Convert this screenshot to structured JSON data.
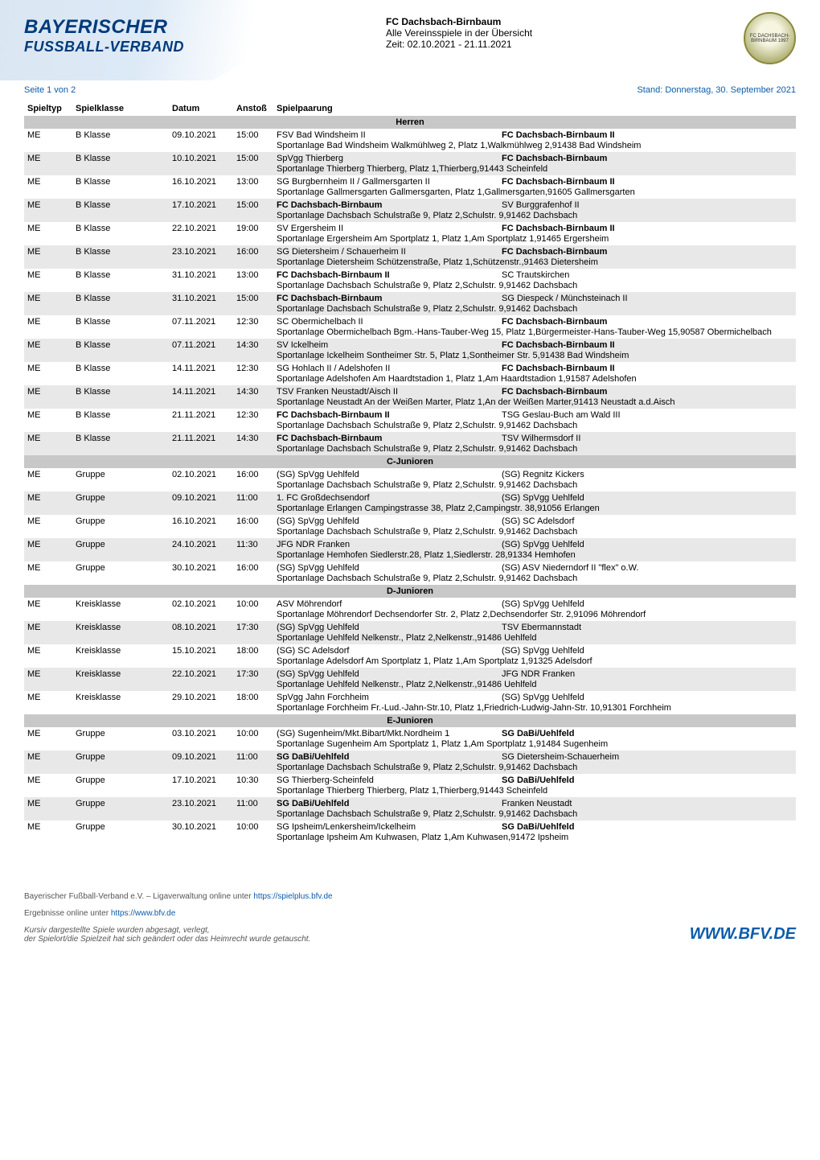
{
  "header": {
    "logo_line1": "BAYERISCHER",
    "logo_line2": "FUSSBALL-VERBAND",
    "club_name": "FC Dachsbach-Birnbaum",
    "subtitle": "Alle Vereinsspiele in der Übersicht",
    "period": "Zeit: 02.10.2021 - 21.11.2021",
    "club_badge": "FC DACHSBACH-BIRNBAUM 1997"
  },
  "meta": {
    "page": "Seite 1 von 2",
    "stand": "Stand: Donnerstag, 30. September 2021"
  },
  "columns": {
    "spieltyp": "Spieltyp",
    "spielklasse": "Spielklasse",
    "datum": "Datum",
    "anstoss": "Anstoß",
    "spielpaarung": "Spielpaarung"
  },
  "sections": [
    {
      "title": "Herren",
      "rows": [
        {
          "spieltyp": "ME",
          "spielklasse": "B Klasse",
          "datum": "09.10.2021",
          "anstoss": "15:00",
          "home": "FSV Bad Windsheim II",
          "away": "FC Dachsbach-Birnbaum II",
          "away_bold": true,
          "venue": "Sportanlage Bad Windsheim Walkmühlweg 2, Platz 1,Walkmühlweg 2,91438 Bad Windsheim"
        },
        {
          "spieltyp": "ME",
          "spielklasse": "B Klasse",
          "datum": "10.10.2021",
          "anstoss": "15:00",
          "home": "SpVgg Thierberg",
          "away": "FC Dachsbach-Birnbaum",
          "away_bold": true,
          "venue": "Sportanlage Thierberg Thierberg, Platz 1,Thierberg,91443 Scheinfeld"
        },
        {
          "spieltyp": "ME",
          "spielklasse": "B Klasse",
          "datum": "16.10.2021",
          "anstoss": "13:00",
          "home": "SG Burgbernheim II / Gallmersgarten II",
          "away": "FC Dachsbach-Birnbaum II",
          "away_bold": true,
          "venue": "Sportanlage Gallmersgarten Gallmersgarten, Platz 1,Gallmersgarten,91605 Gallmersgarten"
        },
        {
          "spieltyp": "ME",
          "spielklasse": "B Klasse",
          "datum": "17.10.2021",
          "anstoss": "15:00",
          "home": "FC Dachsbach-Birnbaum",
          "home_bold": true,
          "away": "SV Burggrafenhof II",
          "away_bold": false,
          "venue": "Sportanlage Dachsbach Schulstraße 9, Platz 2,Schulstr. 9,91462 Dachsbach"
        },
        {
          "spieltyp": "ME",
          "spielklasse": "B Klasse",
          "datum": "22.10.2021",
          "anstoss": "19:00",
          "home": "SV Ergersheim II",
          "away": "FC Dachsbach-Birnbaum II",
          "away_bold": true,
          "venue": "Sportanlage Ergersheim Am Sportplatz 1, Platz 1,Am Sportplatz 1,91465 Ergersheim"
        },
        {
          "spieltyp": "ME",
          "spielklasse": "B Klasse",
          "datum": "23.10.2021",
          "anstoss": "16:00",
          "home": "SG Dietersheim / Schauerheim II",
          "away": "FC Dachsbach-Birnbaum",
          "away_bold": true,
          "venue": "Sportanlage Dietersheim Schützenstraße, Platz 1,Schützenstr.,91463 Dietersheim"
        },
        {
          "spieltyp": "ME",
          "spielklasse": "B Klasse",
          "datum": "31.10.2021",
          "anstoss": "13:00",
          "home": "FC Dachsbach-Birnbaum II",
          "home_bold": true,
          "away": "SC Trautskirchen",
          "away_bold": false,
          "venue": "Sportanlage Dachsbach Schulstraße 9, Platz 2,Schulstr. 9,91462 Dachsbach"
        },
        {
          "spieltyp": "ME",
          "spielklasse": "B Klasse",
          "datum": "31.10.2021",
          "anstoss": "15:00",
          "home": "FC Dachsbach-Birnbaum",
          "home_bold": true,
          "away": "SG Diespeck / Münchsteinach II",
          "away_bold": false,
          "venue": "Sportanlage Dachsbach Schulstraße 9, Platz 2,Schulstr. 9,91462 Dachsbach"
        },
        {
          "spieltyp": "ME",
          "spielklasse": "B Klasse",
          "datum": "07.11.2021",
          "anstoss": "12:30",
          "home": "SC Obermichelbach II",
          "away": "FC Dachsbach-Birnbaum",
          "away_bold": true,
          "venue": "Sportanlage Obermichelbach Bgm.-Hans-Tauber-Weg 15, Platz 1,Bürgermeister-Hans-Tauber-Weg 15,90587 Obermichelbach"
        },
        {
          "spieltyp": "ME",
          "spielklasse": "B Klasse",
          "datum": "07.11.2021",
          "anstoss": "14:30",
          "home": "SV Ickelheim",
          "away": "FC Dachsbach-Birnbaum II",
          "away_bold": true,
          "venue": "Sportanlage Ickelheim Sontheimer Str. 5, Platz 1,Sontheimer Str. 5,91438 Bad Windsheim"
        },
        {
          "spieltyp": "ME",
          "spielklasse": "B Klasse",
          "datum": "14.11.2021",
          "anstoss": "12:30",
          "home": "SG Hohlach II / Adelshofen II",
          "away": "FC Dachsbach-Birnbaum II",
          "away_bold": true,
          "venue": "Sportanlage Adelshofen Am Haardtstadion 1, Platz 1,Am Haardtstadion 1,91587 Adelshofen"
        },
        {
          "spieltyp": "ME",
          "spielklasse": "B Klasse",
          "datum": "14.11.2021",
          "anstoss": "14:30",
          "home": "TSV Franken Neustadt/Aisch II",
          "away": "FC Dachsbach-Birnbaum",
          "away_bold": true,
          "venue": "Sportanlage Neustadt An der Weißen Marter, Platz 1,An der Weißen Marter,91413 Neustadt a.d.Aisch"
        },
        {
          "spieltyp": "ME",
          "spielklasse": "B Klasse",
          "datum": "21.11.2021",
          "anstoss": "12:30",
          "home": "FC Dachsbach-Birnbaum II",
          "home_bold": true,
          "away": "TSG Geslau-Buch am Wald III",
          "away_bold": false,
          "venue": "Sportanlage Dachsbach Schulstraße 9, Platz 2,Schulstr. 9,91462 Dachsbach"
        },
        {
          "spieltyp": "ME",
          "spielklasse": "B Klasse",
          "datum": "21.11.2021",
          "anstoss": "14:30",
          "home": "FC Dachsbach-Birnbaum",
          "home_bold": true,
          "away": "TSV Wilhermsdorf II",
          "away_bold": false,
          "venue": "Sportanlage Dachsbach Schulstraße 9, Platz 2,Schulstr. 9,91462 Dachsbach"
        }
      ]
    },
    {
      "title": "C-Junioren",
      "rows": [
        {
          "spieltyp": "ME",
          "spielklasse": "Gruppe",
          "datum": "02.10.2021",
          "anstoss": "16:00",
          "home": "(SG) SpVgg Uehlfeld",
          "away": "(SG) Regnitz Kickers",
          "away_bold": false,
          "venue": "Sportanlage Dachsbach Schulstraße 9, Platz 2,Schulstr. 9,91462 Dachsbach"
        },
        {
          "spieltyp": "ME",
          "spielklasse": "Gruppe",
          "datum": "09.10.2021",
          "anstoss": "11:00",
          "home": "1. FC Großdechsendorf",
          "away": "(SG) SpVgg Uehlfeld",
          "away_bold": false,
          "venue": "Sportanlage Erlangen Campingstrasse 38, Platz 2,Campingstr. 38,91056 Erlangen"
        },
        {
          "spieltyp": "ME",
          "spielklasse": "Gruppe",
          "datum": "16.10.2021",
          "anstoss": "16:00",
          "home": "(SG) SpVgg Uehlfeld",
          "away": "(SG) SC Adelsdorf",
          "away_bold": false,
          "venue": "Sportanlage Dachsbach Schulstraße 9, Platz 2,Schulstr. 9,91462 Dachsbach"
        },
        {
          "spieltyp": "ME",
          "spielklasse": "Gruppe",
          "datum": "24.10.2021",
          "anstoss": "11:30",
          "home": "JFG NDR Franken",
          "away": "(SG) SpVgg Uehlfeld",
          "away_bold": false,
          "venue": "Sportanlage Hemhofen Siedlerstr.28, Platz 1,Siedlerstr. 28,91334 Hemhofen"
        },
        {
          "spieltyp": "ME",
          "spielklasse": "Gruppe",
          "datum": "30.10.2021",
          "anstoss": "16:00",
          "home": "(SG) SpVgg Uehlfeld",
          "away": "(SG) ASV Niederndorf II \"flex\" o.W.",
          "away_bold": false,
          "venue": "Sportanlage Dachsbach Schulstraße 9, Platz 2,Schulstr. 9,91462 Dachsbach"
        }
      ]
    },
    {
      "title": "D-Junioren",
      "rows": [
        {
          "spieltyp": "ME",
          "spielklasse": "Kreisklasse",
          "datum": "02.10.2021",
          "anstoss": "10:00",
          "home": "ASV Möhrendorf",
          "away": "(SG) SpVgg Uehlfeld",
          "away_bold": false,
          "venue": "Sportanlage Möhrendorf Dechsendorfer Str. 2, Platz 2,Dechsendorfer Str. 2,91096 Möhrendorf"
        },
        {
          "spieltyp": "ME",
          "spielklasse": "Kreisklasse",
          "datum": "08.10.2021",
          "anstoss": "17:30",
          "home": "(SG) SpVgg Uehlfeld",
          "away": "TSV Ebermannstadt",
          "away_bold": false,
          "venue": "Sportanlage Uehlfeld Nelkenstr., Platz 2,Nelkenstr.,91486 Uehlfeld"
        },
        {
          "spieltyp": "ME",
          "spielklasse": "Kreisklasse",
          "datum": "15.10.2021",
          "anstoss": "18:00",
          "home": "(SG) SC Adelsdorf",
          "away": "(SG) SpVgg Uehlfeld",
          "away_bold": false,
          "venue": "Sportanlage Adelsdorf Am Sportplatz 1, Platz 1,Am Sportplatz 1,91325 Adelsdorf"
        },
        {
          "spieltyp": "ME",
          "spielklasse": "Kreisklasse",
          "datum": "22.10.2021",
          "anstoss": "17:30",
          "home": "(SG) SpVgg Uehlfeld",
          "away": "JFG NDR Franken",
          "away_bold": false,
          "venue": "Sportanlage Uehlfeld Nelkenstr., Platz 2,Nelkenstr.,91486 Uehlfeld"
        },
        {
          "spieltyp": "ME",
          "spielklasse": "Kreisklasse",
          "datum": "29.10.2021",
          "anstoss": "18:00",
          "home": "SpVgg Jahn Forchheim",
          "away": "(SG) SpVgg Uehlfeld",
          "away_bold": false,
          "venue": "Sportanlage Forchheim Fr.-Lud.-Jahn-Str.10, Platz 1,Friedrich-Ludwig-Jahn-Str. 10,91301 Forchheim"
        }
      ]
    },
    {
      "title": "E-Junioren",
      "rows": [
        {
          "spieltyp": "ME",
          "spielklasse": "Gruppe",
          "datum": "03.10.2021",
          "anstoss": "10:00",
          "home": "(SG) Sugenheim/Mkt.Bibart/Mkt.Nordheim 1",
          "away": "SG DaBi/Uehlfeld",
          "away_bold": true,
          "venue": "Sportanlage Sugenheim Am Sportplatz 1, Platz 1,Am Sportplatz 1,91484 Sugenheim"
        },
        {
          "spieltyp": "ME",
          "spielklasse": "Gruppe",
          "datum": "09.10.2021",
          "anstoss": "11:00",
          "home": "SG DaBi/Uehlfeld",
          "home_bold": true,
          "away": "SG Dietersheim-Schauerheim",
          "away_bold": false,
          "venue": "Sportanlage Dachsbach Schulstraße 9, Platz 2,Schulstr. 9,91462 Dachsbach"
        },
        {
          "spieltyp": "ME",
          "spielklasse": "Gruppe",
          "datum": "17.10.2021",
          "anstoss": "10:30",
          "home": "SG Thierberg-Scheinfeld",
          "away": "SG DaBi/Uehlfeld",
          "away_bold": true,
          "venue": "Sportanlage Thierberg Thierberg, Platz 1,Thierberg,91443 Scheinfeld"
        },
        {
          "spieltyp": "ME",
          "spielklasse": "Gruppe",
          "datum": "23.10.2021",
          "anstoss": "11:00",
          "home": "SG DaBi/Uehlfeld",
          "home_bold": true,
          "away": "Franken Neustadt",
          "away_bold": false,
          "venue": "Sportanlage Dachsbach Schulstraße 9, Platz 2,Schulstr. 9,91462 Dachsbach"
        },
        {
          "spieltyp": "ME",
          "spielklasse": "Gruppe",
          "datum": "30.10.2021",
          "anstoss": "10:00",
          "home": "SG Ipsheim/Lenkersheim/Ickelheim",
          "away": "SG DaBi/Uehlfeld",
          "away_bold": true,
          "venue": "Sportanlage Ipsheim Am Kuhwasen, Platz 1,Am Kuhwasen,91472 Ipsheim"
        }
      ]
    }
  ],
  "footer": {
    "line1_prefix": "Bayerischer Fußball-Verband e.V. – Ligaverwaltung online unter ",
    "line1_link": "https://spielplus.bfv.de",
    "line2_prefix": "Ergebnisse online unter ",
    "line2_link": "https://www.bfv.de",
    "note": "Kursiv dargestellte Spiele wurden abgesagt, verlegt,\nder Spielort/die Spielzeit hat sich geändert oder das Heimrecht wurde getauscht.",
    "logo": "WWW.BFV.DE"
  },
  "colors": {
    "brand_blue": "#0b5cab",
    "brand_dark_blue": "#003a7a",
    "row_even": "#e8e8e8",
    "row_odd": "#ffffff",
    "section_bg": "#c8c8c8",
    "text": "#000000",
    "footer_text": "#555555"
  }
}
